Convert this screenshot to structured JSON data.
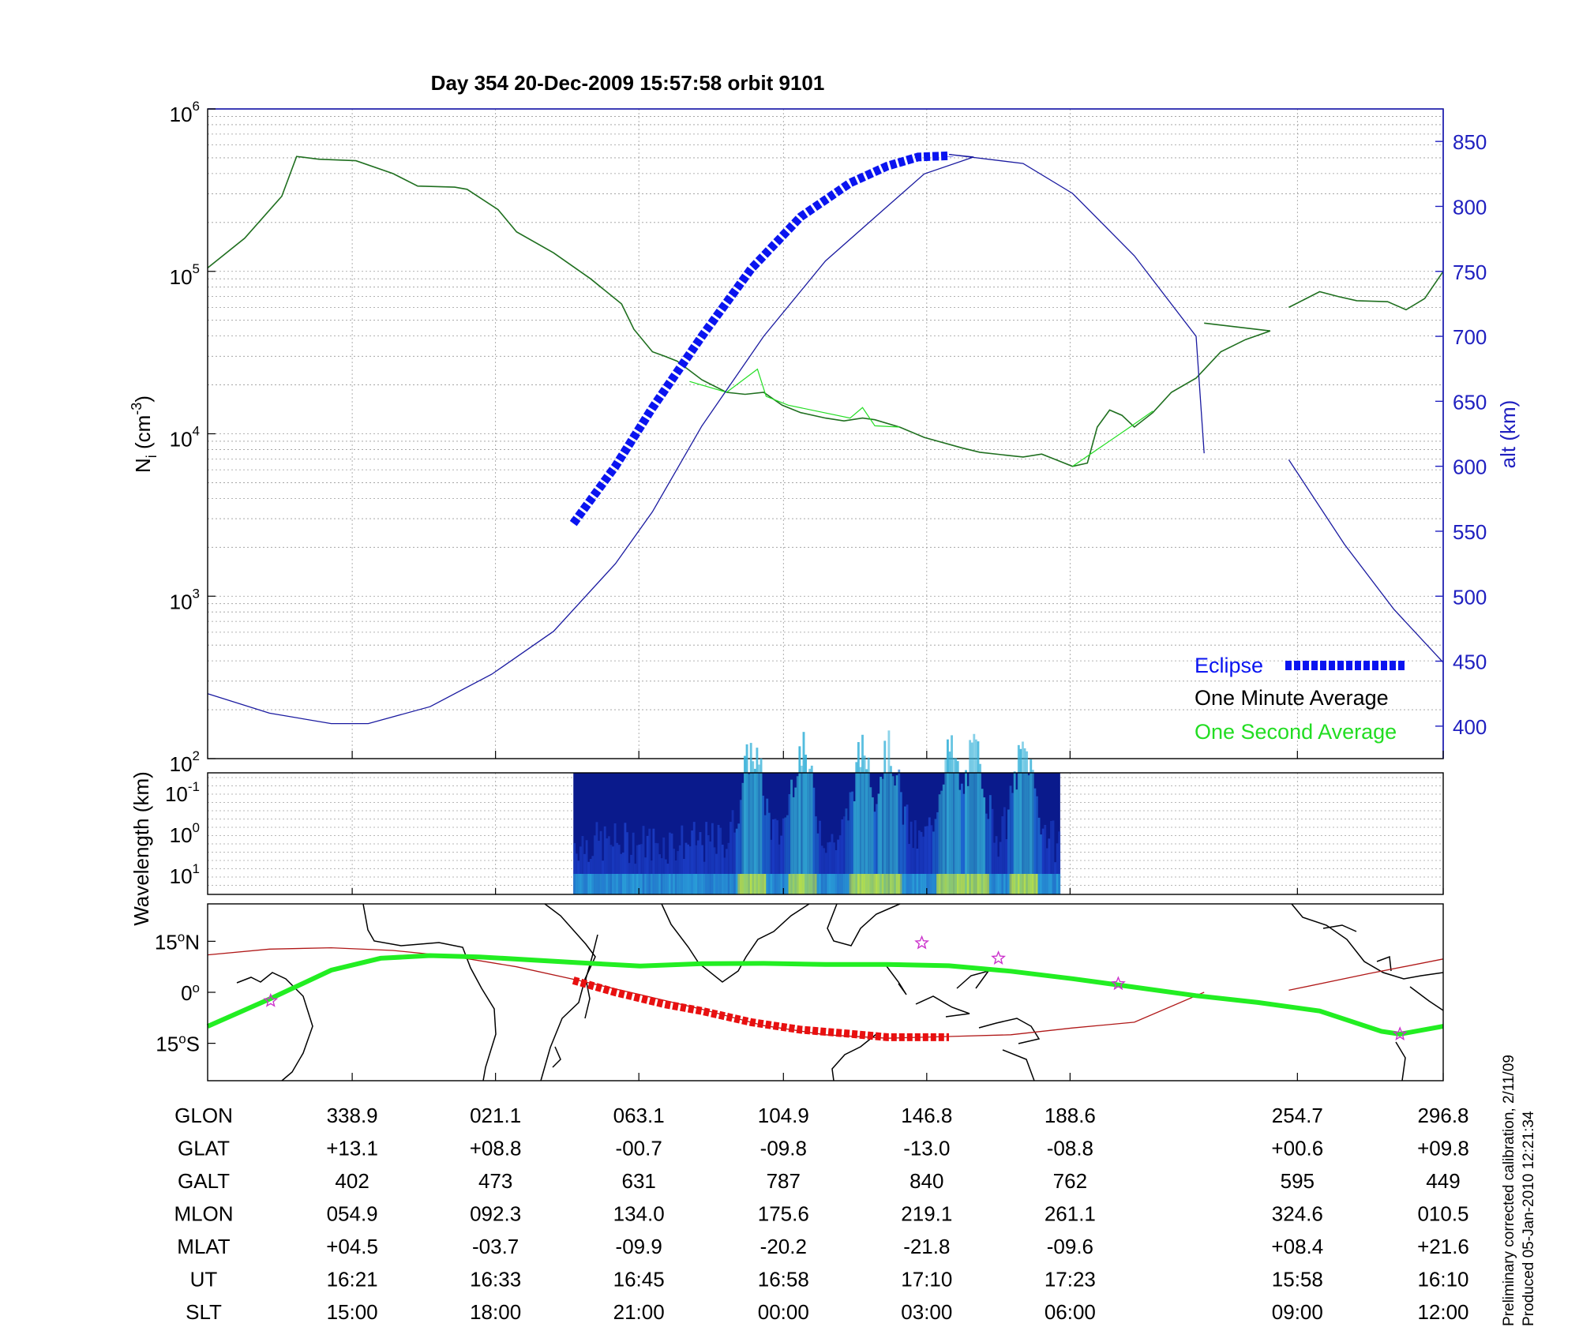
{
  "title": "Day 354  20-Dec-2009 15:57:58   orbit 9101",
  "colors": {
    "eclipse": "#0a14f0",
    "one_minute": "#1f6f1f",
    "one_second": "#22dd22",
    "altitude": "#1a1aa0",
    "axis_right": "#2020c0",
    "trajectory_red": "#b01818",
    "eclipse_ground": "#e81010",
    "orbit_green": "#22ee22",
    "stars": "#cc33cc"
  },
  "chart_data": [
    {
      "type": "line",
      "name": "density-altitude-panel",
      "ylabel": "N_i (cm^-3)",
      "ylabel_parts": {
        "base": "N",
        "sub": "i",
        "unit_open": " (cm",
        "sup": "-3",
        "unit_close": ")"
      },
      "y_scale": "log",
      "ylim": [
        100,
        1000000
      ],
      "y_ticks": [
        {
          "value": 100,
          "base": "10",
          "exp": "2"
        },
        {
          "value": 1000,
          "base": "10",
          "exp": "3"
        },
        {
          "value": 10000,
          "base": "10",
          "exp": "4"
        },
        {
          "value": 100000,
          "base": "10",
          "exp": "5"
        },
        {
          "value": 1000000,
          "base": "10",
          "exp": "6"
        }
      ],
      "y2label": "alt (km)",
      "y2lim": [
        375,
        875
      ],
      "y2_ticks": [
        "400",
        "450",
        "500",
        "550",
        "600",
        "650",
        "700",
        "750",
        "800",
        "850"
      ],
      "x_fraction_range": [
        0,
        1
      ],
      "grid": true,
      "legend": {
        "position": "bottom-right",
        "entries": [
          {
            "label": "Eclipse",
            "color_key": "eclipse"
          },
          {
            "label": "One Minute Average",
            "color_key": "one_minute"
          },
          {
            "label": "One Second Average",
            "color_key": "one_second"
          }
        ]
      },
      "series": [
        {
          "name": "One Minute Average",
          "axis": "left",
          "segments": [
            [
              [
                0.0,
                105000
              ],
              [
                0.03,
                160000
              ],
              [
                0.06,
                290000
              ],
              [
                0.072,
                510000
              ],
              [
                0.09,
                490000
              ],
              [
                0.12,
                480000
              ],
              [
                0.15,
                400000
              ],
              [
                0.17,
                335000
              ],
              [
                0.2,
                330000
              ],
              [
                0.21,
                320000
              ],
              [
                0.235,
                240000
              ],
              [
                0.25,
                175000
              ],
              [
                0.28,
                130000
              ],
              [
                0.31,
                90000
              ],
              [
                0.335,
                63000
              ],
              [
                0.345,
                44000
              ],
              [
                0.36,
                32000
              ],
              [
                0.37,
                30000
              ],
              [
                0.38,
                28000
              ],
              [
                0.4,
                21500
              ],
              [
                0.42,
                18000
              ],
              [
                0.435,
                17500
              ],
              [
                0.45,
                18000
              ],
              [
                0.465,
                15000
              ],
              [
                0.48,
                13500
              ],
              [
                0.5,
                12500
              ],
              [
                0.515,
                12000
              ],
              [
                0.53,
                12500
              ],
              [
                0.54,
                12200
              ],
              [
                0.56,
                11000
              ],
              [
                0.58,
                9500
              ],
              [
                0.61,
                8200
              ],
              [
                0.625,
                7700
              ],
              [
                0.645,
                7400
              ],
              [
                0.66,
                7200
              ],
              [
                0.675,
                7500
              ],
              [
                0.685,
                7000
              ],
              [
                0.7,
                6300
              ],
              [
                0.712,
                6600
              ],
              [
                0.72,
                11000
              ],
              [
                0.73,
                14000
              ],
              [
                0.74,
                13000
              ],
              [
                0.75,
                11000
              ],
              [
                0.765,
                13500
              ],
              [
                0.78,
                18000
              ],
              [
                0.8,
                22000
              ],
              [
                0.82,
                32000
              ],
              [
                0.84,
                38000
              ],
              [
                0.86,
                43000
              ],
              [
                0.8065,
                48000
              ]
            ],
            [
              [
                0.875,
                60000
              ],
              [
                0.9,
                75000
              ],
              [
                0.915,
                70000
              ],
              [
                0.93,
                66000
              ],
              [
                0.955,
                65000
              ],
              [
                0.97,
                58000
              ],
              [
                0.985,
                68000
              ],
              [
                1.0,
                100000
              ]
            ]
          ]
        },
        {
          "name": "One Second Average",
          "axis": "left",
          "segments": [
            [
              [
                0.39,
                21000
              ],
              [
                0.42,
                18000
              ],
              [
                0.445,
                25000
              ],
              [
                0.452,
                17000
              ],
              [
                0.47,
                15000
              ],
              [
                0.52,
                12500
              ],
              [
                0.53,
                14500
              ],
              [
                0.54,
                11200
              ],
              [
                0.56,
                11000
              ]
            ],
            [
              [
                0.7,
                6300
              ],
              [
                0.745,
                10800
              ],
              [
                0.765,
                13800
              ]
            ]
          ]
        },
        {
          "name": "alt (km)",
          "axis": "right",
          "note": "orbit altitude",
          "segments": [
            [
              [
                0.0,
                425
              ],
              [
                0.05,
                410
              ],
              [
                0.1,
                402
              ],
              [
                0.13,
                402
              ],
              [
                0.18,
                415
              ],
              [
                0.23,
                440
              ],
              [
                0.28,
                473
              ],
              [
                0.33,
                525
              ],
              [
                0.36,
                565
              ],
              [
                0.4,
                631
              ],
              [
                0.45,
                700
              ],
              [
                0.5,
                758
              ],
              [
                0.55,
                800
              ],
              [
                0.58,
                825
              ],
              [
                0.62,
                838
              ],
              [
                0.6,
                840
              ],
              [
                0.66,
                833
              ],
              [
                0.7,
                810
              ],
              [
                0.75,
                762
              ],
              [
                0.8,
                700
              ],
              [
                0.8065,
                610
              ]
            ],
            [
              [
                0.875,
                605
              ],
              [
                0.92,
                540
              ],
              [
                0.96,
                490
              ],
              [
                1.0,
                449
              ]
            ]
          ]
        },
        {
          "name": "Eclipse",
          "axis": "right",
          "segments": [
            [
              [
                0.296,
                556
              ],
              [
                0.33,
                600
              ],
              [
                0.36,
                645
              ],
              [
                0.4,
                700
              ],
              [
                0.44,
                752
              ],
              [
                0.48,
                792
              ],
              [
                0.52,
                818
              ],
              [
                0.55,
                831
              ],
              [
                0.575,
                838
              ],
              [
                0.6,
                839
              ],
              [
                0.6,
                838
              ]
            ]
          ]
        }
      ]
    },
    {
      "type": "heatmap",
      "name": "wavelength-spectrogram",
      "ylabel": "Wavelength (km)",
      "y_ticks": [
        {
          "base": "10",
          "exp": "-1"
        },
        {
          "base": "10",
          "exp": "0"
        },
        {
          "base": "10",
          "exp": "1"
        }
      ],
      "data_x_fraction_range": [
        0.296,
        0.69
      ],
      "intensity_peaks_x_fraction": [
        0.44,
        0.48,
        0.53,
        0.55,
        0.6,
        0.62,
        0.66
      ]
    },
    {
      "type": "line",
      "name": "ground-track-map",
      "y_ticks": [
        {
          "label": "15",
          "deg": "o",
          "hemi": "N",
          "value": 15
        },
        {
          "label": "0",
          "deg": "o",
          "hemi": "",
          "value": 0
        },
        {
          "label": "15",
          "deg": "o",
          "hemi": "S",
          "value": -15
        }
      ],
      "ylim": [
        -26,
        26
      ],
      "series": [
        {
          "name": "satellite-ground-track",
          "color_key": "trajectory_red",
          "segments": [
            [
              [
                0.0,
                11
              ],
              [
                0.05,
                12.7
              ],
              [
                0.1,
                13.1
              ],
              [
                0.15,
                12.3
              ],
              [
                0.2,
                10.5
              ],
              [
                0.25,
                7.5
              ],
              [
                0.3,
                3.5
              ],
              [
                0.35,
                -0.7
              ],
              [
                0.4,
                -5
              ],
              [
                0.45,
                -9.8
              ],
              [
                0.5,
                -12.5
              ],
              [
                0.55,
                -13.5
              ],
              [
                0.6,
                -13
              ],
              [
                0.65,
                -12.5
              ],
              [
                0.7,
                -10.5
              ],
              [
                0.75,
                -8.8
              ],
              [
                0.8065,
                0
              ]
            ],
            [
              [
                0.875,
                0.6
              ],
              [
                0.94,
                5.5
              ],
              [
                1.0,
                9.8
              ]
            ]
          ]
        },
        {
          "name": "eclipse-ground-track",
          "color_key": "eclipse_ground",
          "segments": [
            [
              [
                0.296,
                3.5
              ],
              [
                0.33,
                0
              ],
              [
                0.37,
                -3.5
              ],
              [
                0.4,
                -5.5
              ],
              [
                0.44,
                -8.8
              ],
              [
                0.48,
                -11
              ],
              [
                0.52,
                -12.2
              ],
              [
                0.55,
                -13.2
              ],
              [
                0.6,
                -13.2
              ]
            ]
          ]
        },
        {
          "name": "magnetic-equator",
          "color_key": "orbit_green",
          "segments": [
            [
              [
                0.0,
                -10
              ],
              [
                0.05,
                -2
              ],
              [
                0.1,
                6.5
              ],
              [
                0.14,
                10
              ],
              [
                0.18,
                10.8
              ],
              [
                0.22,
                10.4
              ],
              [
                0.3,
                8.7
              ],
              [
                0.35,
                7.7
              ],
              [
                0.4,
                8.4
              ],
              [
                0.45,
                8.5
              ],
              [
                0.5,
                8.2
              ],
              [
                0.55,
                8.2
              ],
              [
                0.6,
                7.8
              ],
              [
                0.65,
                6.2
              ],
              [
                0.7,
                4
              ],
              [
                0.75,
                1.5
              ],
              [
                0.8,
                -1
              ],
              [
                0.85,
                -3
              ],
              [
                0.9,
                -5.5
              ],
              [
                0.95,
                -11.5
              ],
              [
                0.965,
                -12.3
              ],
              [
                1.0,
                -10
              ]
            ]
          ]
        }
      ],
      "markers": [
        {
          "type": "star",
          "x": 0.051,
          "y": -2.5
        },
        {
          "type": "star",
          "x": 0.578,
          "y": 14.5
        },
        {
          "type": "star",
          "x": 0.64,
          "y": 10
        },
        {
          "type": "star",
          "x": 0.737,
          "y": 2.5
        },
        {
          "type": "star",
          "x": 0.965,
          "y": -12.3
        }
      ]
    },
    {
      "type": "table",
      "name": "orbit-ephemeris",
      "columns_x_fraction": [
        0.117,
        0.233,
        0.349,
        0.466,
        0.582,
        0.698,
        0.882,
        1.0
      ],
      "rows": [
        {
          "label": "GLON",
          "values": [
            "338.9",
            "021.1",
            "063.1",
            "104.9",
            "146.8",
            "188.6",
            "254.7",
            "296.8"
          ]
        },
        {
          "label": "GLAT",
          "values": [
            "+13.1",
            "+08.8",
            "-00.7",
            "-09.8",
            "-13.0",
            "-08.8",
            "+00.6",
            "+09.8"
          ]
        },
        {
          "label": "GALT",
          "values": [
            "402",
            "473",
            "631",
            "787",
            "840",
            "762",
            "595",
            "449"
          ]
        },
        {
          "label": "MLON",
          "values": [
            "054.9",
            "092.3",
            "134.0",
            "175.6",
            "219.1",
            "261.1",
            "324.6",
            "010.5"
          ]
        },
        {
          "label": "MLAT",
          "values": [
            "+04.5",
            "-03.7",
            "-09.9",
            "-20.2",
            "-21.8",
            "-09.6",
            "+08.4",
            "+21.6"
          ]
        },
        {
          "label": "UT",
          "values": [
            "16:21",
            "16:33",
            "16:45",
            "16:58",
            "17:10",
            "17:23",
            "15:58",
            "16:10"
          ]
        },
        {
          "label": "SLT",
          "values": [
            "15:00",
            "18:00",
            "21:00",
            "00:00",
            "03:00",
            "06:00",
            "09:00",
            "12:00"
          ]
        }
      ]
    }
  ],
  "footnote": {
    "line1": "Preliminary corrected calibration, 2/11/09",
    "line2": "Produced 05-Jan-2010 12:21:34"
  }
}
